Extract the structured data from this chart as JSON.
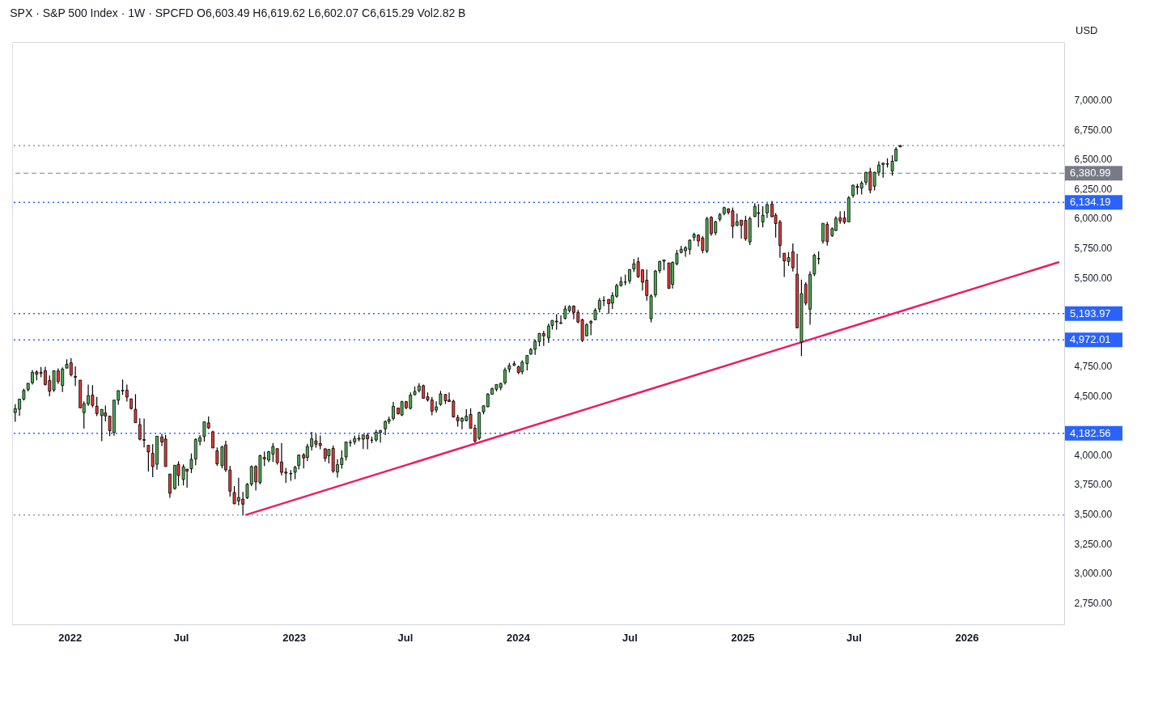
{
  "chart_data": {
    "type": "candlestick",
    "title": "SPX · S&P 500 Index · 1W · SPCFD   O6,603.49  H6,619.62  L6,602.07  C6,615.29  Vol2.82 B",
    "annotations": [
      "USD"
    ],
    "x": [
      "2021-10-04",
      "2021-10-11",
      "2021-10-18",
      "2021-10-25",
      "2021-11-01",
      "2021-11-08",
      "2021-11-15",
      "2021-11-22",
      "2021-11-29",
      "2021-12-06",
      "2021-12-13",
      "2021-12-20",
      "2021-12-27",
      "2022-01-03",
      "2022-01-10",
      "2022-01-18",
      "2022-01-24",
      "2022-01-31",
      "2022-02-07",
      "2022-02-14",
      "2022-02-22",
      "2022-02-28",
      "2022-03-07",
      "2022-03-14",
      "2022-03-21",
      "2022-03-28",
      "2022-04-04",
      "2022-04-11",
      "2022-04-18",
      "2022-04-25",
      "2022-05-02",
      "2022-05-09",
      "2022-05-16",
      "2022-05-23",
      "2022-05-31",
      "2022-06-06",
      "2022-06-13",
      "2022-06-21",
      "2022-06-27",
      "2022-07-05",
      "2022-07-11",
      "2022-07-18",
      "2022-07-25",
      "2022-08-01",
      "2022-08-08",
      "2022-08-15",
      "2022-08-22",
      "2022-08-29",
      "2022-09-06",
      "2022-09-12",
      "2022-09-19",
      "2022-09-26",
      "2022-10-03",
      "2022-10-10",
      "2022-10-17",
      "2022-10-24",
      "2022-10-31",
      "2022-11-07",
      "2022-11-14",
      "2022-11-21",
      "2022-11-28",
      "2022-12-05",
      "2022-12-12",
      "2022-12-19",
      "2022-12-27",
      "2023-01-03",
      "2023-01-09",
      "2023-01-17",
      "2023-01-23",
      "2023-01-30",
      "2023-02-06",
      "2023-02-13",
      "2023-02-21",
      "2023-02-27",
      "2023-03-06",
      "2023-03-13",
      "2023-03-20",
      "2023-03-27",
      "2023-04-03",
      "2023-04-10",
      "2023-04-17",
      "2023-04-24",
      "2023-05-01",
      "2023-05-08",
      "2023-05-15",
      "2023-05-22",
      "2023-05-30",
      "2023-06-05",
      "2023-06-12",
      "2023-06-20",
      "2023-06-26",
      "2023-07-03",
      "2023-07-10",
      "2023-07-17",
      "2023-07-24",
      "2023-07-31",
      "2023-08-07",
      "2023-08-14",
      "2023-08-21",
      "2023-08-28",
      "2023-09-05",
      "2023-09-11",
      "2023-09-18",
      "2023-09-25",
      "2023-10-02",
      "2023-10-09",
      "2023-10-16",
      "2023-10-23",
      "2023-10-30",
      "2023-11-06",
      "2023-11-13",
      "2023-11-20",
      "2023-11-27",
      "2023-12-04",
      "2023-12-11",
      "2023-12-18",
      "2023-12-26",
      "2024-01-02",
      "2024-01-08",
      "2024-01-16",
      "2024-01-22",
      "2024-01-29",
      "2024-02-05",
      "2024-02-12",
      "2024-02-20",
      "2024-02-26",
      "2024-03-04",
      "2024-03-11",
      "2024-03-18",
      "2024-03-25",
      "2024-04-01",
      "2024-04-08",
      "2024-04-15",
      "2024-04-22",
      "2024-04-29",
      "2024-05-06",
      "2024-05-13",
      "2024-05-20",
      "2024-05-28",
      "2024-06-03",
      "2024-06-10",
      "2024-06-17",
      "2024-06-24",
      "2024-07-01",
      "2024-07-08",
      "2024-07-15",
      "2024-07-22",
      "2024-07-29",
      "2024-08-05",
      "2024-08-12",
      "2024-08-19",
      "2024-08-26",
      "2024-09-03",
      "2024-09-09",
      "2024-09-16",
      "2024-09-23",
      "2024-09-30",
      "2024-10-07",
      "2024-10-14",
      "2024-10-21",
      "2024-10-28",
      "2024-11-04",
      "2024-11-11",
      "2024-11-18",
      "2024-11-25",
      "2024-12-02",
      "2024-12-09",
      "2024-12-16",
      "2024-12-23",
      "2024-12-30",
      "2025-01-06",
      "2025-01-13",
      "2025-01-21",
      "2025-01-27",
      "2025-02-03",
      "2025-02-10",
      "2025-02-18",
      "2025-02-24",
      "2025-03-03",
      "2025-03-10",
      "2025-03-17",
      "2025-03-24",
      "2025-03-31",
      "2025-04-07",
      "2025-04-14",
      "2025-04-21",
      "2025-04-28",
      "2025-05-05",
      "2025-05-12",
      "2025-05-19",
      "2025-05-27",
      "2025-06-02",
      "2025-06-09",
      "2025-06-16",
      "2025-06-23",
      "2025-06-30",
      "2025-07-07",
      "2025-07-14",
      "2025-07-21",
      "2025-07-28",
      "2025-08-04",
      "2025-08-11",
      "2025-08-18",
      "2025-08-25",
      "2025-09-02",
      "2025-09-08",
      "2025-09-15"
    ],
    "ohlc": [
      [
        4357,
        4429,
        4279,
        4391
      ],
      [
        4386,
        4475,
        4329,
        4471
      ],
      [
        4471,
        4559,
        4459,
        4545
      ],
      [
        4553,
        4608,
        4537,
        4605
      ],
      [
        4610,
        4718,
        4595,
        4697
      ],
      [
        4701,
        4714,
        4630,
        4682
      ],
      [
        4689,
        4743,
        4656,
        4698
      ],
      [
        4712,
        4744,
        4585,
        4595
      ],
      [
        4628,
        4672,
        4495,
        4538
      ],
      [
        4548,
        4713,
        4532,
        4712
      ],
      [
        4710,
        4731,
        4600,
        4620
      ],
      [
        4587,
        4740,
        4531,
        4725
      ],
      [
        4733,
        4808,
        4733,
        4766
      ],
      [
        4778,
        4818,
        4662,
        4677
      ],
      [
        4656,
        4749,
        4582,
        4663
      ],
      [
        4632,
        4632,
        4395,
        4398
      ],
      [
        4357,
        4453,
        4222,
        4432
      ],
      [
        4431,
        4595,
        4415,
        4501
      ],
      [
        4505,
        4590,
        4401,
        4419
      ],
      [
        4412,
        4490,
        4327,
        4349
      ],
      [
        4332,
        4385,
        4115,
        4385
      ],
      [
        4354,
        4416,
        4284,
        4329
      ],
      [
        4328,
        4329,
        4158,
        4204
      ],
      [
        4188,
        4465,
        4161,
        4463
      ],
      [
        4462,
        4546,
        4424,
        4543
      ],
      [
        4541,
        4637,
        4507,
        4546
      ],
      [
        4547,
        4594,
        4450,
        4488
      ],
      [
        4474,
        4475,
        4382,
        4392
      ],
      [
        4385,
        4513,
        4270,
        4272
      ],
      [
        4256,
        4308,
        4123,
        4132
      ],
      [
        4130,
        4307,
        4062,
        4123
      ],
      [
        4081,
        4081,
        3859,
        4024
      ],
      [
        4013,
        4090,
        3811,
        3901
      ],
      [
        3920,
        4158,
        3875,
        4158
      ],
      [
        4151,
        4177,
        4074,
        4109
      ],
      [
        4134,
        4169,
        3900,
        3901
      ],
      [
        3838,
        3838,
        3637,
        3675
      ],
      [
        3715,
        3912,
        3705,
        3912
      ],
      [
        3920,
        3946,
        3738,
        3825
      ],
      [
        3792,
        3919,
        3742,
        3899
      ],
      [
        3880,
        3880,
        3722,
        3863
      ],
      [
        3883,
        4012,
        3846,
        3962
      ],
      [
        3965,
        4140,
        3913,
        4130
      ],
      [
        4113,
        4167,
        4079,
        4145
      ],
      [
        4155,
        4280,
        4112,
        4280
      ],
      [
        4270,
        4325,
        4218,
        4228
      ],
      [
        4195,
        4204,
        4057,
        4058
      ],
      [
        4034,
        4062,
        3907,
        3924
      ],
      [
        3909,
        4076,
        3886,
        4067
      ],
      [
        4084,
        4119,
        3856,
        3873
      ],
      [
        3872,
        3907,
        3647,
        3693
      ],
      [
        3682,
        3736,
        3584,
        3586
      ],
      [
        3610,
        3806,
        3572,
        3639
      ],
      [
        3626,
        3686,
        3492,
        3583
      ],
      [
        3638,
        3762,
        3627,
        3752
      ],
      [
        3753,
        3910,
        3735,
        3901
      ],
      [
        3902,
        3912,
        3698,
        3771
      ],
      [
        3767,
        4001,
        3750,
        3993
      ],
      [
        3978,
        4028,
        3906,
        3965
      ],
      [
        3956,
        4034,
        3938,
        4026
      ],
      [
        4006,
        4100,
        3940,
        4071
      ],
      [
        4053,
        4053,
        3918,
        3934
      ],
      [
        3940,
        4101,
        3827,
        3852
      ],
      [
        3854,
        3890,
        3764,
        3845
      ],
      [
        3843,
        3872,
        3780,
        3839
      ],
      [
        3853,
        3907,
        3794,
        3895
      ],
      [
        3910,
        4003,
        3877,
        3999
      ],
      [
        3999,
        4015,
        3885,
        3973
      ],
      [
        3978,
        4094,
        3949,
        4071
      ],
      [
        4070,
        4195,
        4037,
        4136
      ],
      [
        4119,
        4176,
        4060,
        4090
      ],
      [
        4096,
        4163,
        4048,
        4079
      ],
      [
        4052,
        4052,
        3943,
        3970
      ],
      [
        3992,
        4048,
        3928,
        4046
      ],
      [
        4055,
        4078,
        3847,
        3862
      ],
      [
        3855,
        3963,
        3808,
        3917
      ],
      [
        3917,
        4039,
        3884,
        3971
      ],
      [
        3982,
        4110,
        3951,
        4109
      ],
      [
        4103,
        4128,
        4069,
        4105
      ],
      [
        4110,
        4164,
        4086,
        4138
      ],
      [
        4140,
        4170,
        4114,
        4133
      ],
      [
        4132,
        4170,
        4049,
        4169
      ],
      [
        4166,
        4186,
        4048,
        4136
      ],
      [
        4124,
        4154,
        4099,
        4124
      ],
      [
        4126,
        4212,
        4111,
        4191
      ],
      [
        4190,
        4212,
        4103,
        4205
      ],
      [
        4220,
        4290,
        4167,
        4282
      ],
      [
        4283,
        4322,
        4261,
        4299
      ],
      [
        4308,
        4448,
        4292,
        4410
      ],
      [
        4396,
        4400,
        4341,
        4348
      ],
      [
        4337,
        4458,
        4328,
        4450
      ],
      [
        4450,
        4456,
        4385,
        4399
      ],
      [
        4394,
        4528,
        4384,
        4505
      ],
      [
        4508,
        4578,
        4504,
        4536
      ],
      [
        4543,
        4607,
        4528,
        4582
      ],
      [
        4585,
        4594,
        4474,
        4478
      ],
      [
        4491,
        4528,
        4450,
        4464
      ],
      [
        4464,
        4490,
        4335,
        4370
      ],
      [
        4380,
        4452,
        4356,
        4406
      ],
      [
        4426,
        4541,
        4415,
        4516
      ],
      [
        4510,
        4514,
        4430,
        4457
      ],
      [
        4463,
        4527,
        4447,
        4450
      ],
      [
        4454,
        4466,
        4316,
        4320
      ],
      [
        4316,
        4338,
        4238,
        4288
      ],
      [
        4284,
        4319,
        4216,
        4309
      ],
      [
        4289,
        4385,
        4283,
        4327
      ],
      [
        4342,
        4394,
        4223,
        4224
      ],
      [
        4226,
        4256,
        4104,
        4117
      ],
      [
        4140,
        4366,
        4126,
        4358
      ],
      [
        4364,
        4418,
        4343,
        4415
      ],
      [
        4406,
        4521,
        4403,
        4514
      ],
      [
        4512,
        4568,
        4510,
        4559
      ],
      [
        4555,
        4595,
        4537,
        4595
      ],
      [
        4569,
        4609,
        4546,
        4604
      ],
      [
        4610,
        4738,
        4594,
        4719
      ],
      [
        4725,
        4778,
        4697,
        4754
      ],
      [
        4758,
        4793,
        4751,
        4770
      ],
      [
        4745,
        4755,
        4682,
        4697
      ],
      [
        4703,
        4799,
        4682,
        4784
      ],
      [
        4772,
        4842,
        4714,
        4840
      ],
      [
        4853,
        4904,
        4845,
        4891
      ],
      [
        4892,
        4975,
        4845,
        4959
      ],
      [
        4958,
        5030,
        4918,
        5027
      ],
      [
        5026,
        5049,
        4920,
        5006
      ],
      [
        4989,
        5111,
        4946,
        5089
      ],
      [
        5094,
        5138,
        5059,
        5137
      ],
      [
        5130,
        5190,
        5057,
        5124
      ],
      [
        5112,
        5179,
        5105,
        5117
      ],
      [
        5154,
        5262,
        5145,
        5234
      ],
      [
        5220,
        5265,
        5203,
        5254
      ],
      [
        5258,
        5265,
        5146,
        5204
      ],
      [
        5204,
        5225,
        5113,
        5123
      ],
      [
        5142,
        5151,
        4953,
        4967
      ],
      [
        5006,
        5114,
        5002,
        5100
      ],
      [
        5115,
        5139,
        5011,
        5128
      ],
      [
        5142,
        5240,
        5142,
        5223
      ],
      [
        5233,
        5326,
        5204,
        5304
      ],
      [
        5305,
        5342,
        5257,
        5305
      ],
      [
        5315,
        5315,
        5191,
        5278
      ],
      [
        5283,
        5376,
        5234,
        5347
      ],
      [
        5341,
        5447,
        5327,
        5432
      ],
      [
        5432,
        5505,
        5421,
        5465
      ],
      [
        5460,
        5524,
        5433,
        5460
      ],
      [
        5471,
        5570,
        5448,
        5567
      ],
      [
        5572,
        5656,
        5546,
        5615
      ],
      [
        5633,
        5669,
        5497,
        5505
      ],
      [
        5565,
        5566,
        5390,
        5459
      ],
      [
        5476,
        5567,
        5303,
        5347
      ],
      [
        5151,
        5358,
        5120,
        5344
      ],
      [
        5353,
        5563,
        5331,
        5554
      ],
      [
        5557,
        5643,
        5536,
        5634
      ],
      [
        5637,
        5651,
        5560,
        5648
      ],
      [
        5623,
        5623,
        5403,
        5408
      ],
      [
        5442,
        5636,
        5406,
        5627
      ],
      [
        5615,
        5733,
        5602,
        5703
      ],
      [
        5711,
        5767,
        5703,
        5738
      ],
      [
        5726,
        5765,
        5674,
        5751
      ],
      [
        5737,
        5822,
        5694,
        5815
      ],
      [
        5839,
        5878,
        5809,
        5864
      ],
      [
        5857,
        5866,
        5762,
        5808
      ],
      [
        5833,
        5850,
        5703,
        5729
      ],
      [
        5723,
        6013,
        5706,
        5996
      ],
      [
        6008,
        6018,
        5853,
        5870
      ],
      [
        5878,
        5979,
        5858,
        5969
      ],
      [
        5992,
        6045,
        5973,
        6032
      ],
      [
        6041,
        6099,
        6025,
        6090
      ],
      [
        6080,
        6085,
        6032,
        6051
      ],
      [
        6063,
        6091,
        5832,
        5931
      ],
      [
        5940,
        6040,
        5935,
        5971
      ],
      [
        5984,
        5985,
        5829,
        5942
      ],
      [
        5982,
        6021,
        5809,
        5827
      ],
      [
        5800,
        6014,
        5773,
        5997
      ],
      [
        6015,
        6128,
        6009,
        6101
      ],
      [
        6047,
        6120,
        5923,
        6041
      ],
      [
        5969,
        6101,
        5923,
        6026
      ],
      [
        6046,
        6128,
        6003,
        6115
      ],
      [
        6121,
        6147,
        6009,
        6013
      ],
      [
        6026,
        6044,
        5837,
        5955
      ],
      [
        5969,
        5986,
        5666,
        5770
      ],
      [
        5705,
        5705,
        5504,
        5639
      ],
      [
        5635,
        5715,
        5597,
        5667
      ],
      [
        5718,
        5787,
        5550,
        5581
      ],
      [
        5527,
        5700,
        5069,
        5074
      ],
      [
        4953,
        5481,
        4835,
        5363
      ],
      [
        5441,
        5459,
        5265,
        5283
      ],
      [
        5232,
        5551,
        5101,
        5525
      ],
      [
        5529,
        5700,
        5511,
        5687
      ],
      [
        5657,
        5720,
        5612,
        5660
      ],
      [
        5807,
        5959,
        5786,
        5958
      ],
      [
        5949,
        5969,
        5768,
        5803
      ],
      [
        5854,
        5922,
        5843,
        5912
      ],
      [
        5897,
        6017,
        5891,
        6000
      ],
      [
        6005,
        6060,
        5953,
        5977
      ],
      [
        6004,
        6060,
        5952,
        5968
      ],
      [
        5970,
        6187,
        5970,
        6173
      ],
      [
        6193,
        6285,
        6173,
        6280
      ],
      [
        6270,
        6291,
        6201,
        6260
      ],
      [
        6255,
        6316,
        6201,
        6297
      ],
      [
        6305,
        6393,
        6282,
        6389
      ],
      [
        6394,
        6427,
        6212,
        6238
      ],
      [
        6271,
        6395,
        6236,
        6389
      ],
      [
        6389,
        6481,
        6358,
        6450
      ],
      [
        6455,
        6469,
        6343,
        6467
      ],
      [
        6457,
        6508,
        6429,
        6460
      ],
      [
        6401,
        6532,
        6360,
        6482
      ],
      [
        6485,
        6601,
        6482,
        6584
      ],
      [
        6603.49,
        6619.62,
        6602.07,
        6615.29
      ]
    ],
    "series": [
      {
        "type": "line",
        "color": "#e91e63",
        "x": [
          "2022-10-14",
          "2026-06-01"
        ],
        "values": [
          3491,
          5630
        ]
      }
    ],
    "ref_lines": [
      {
        "axis": "y",
        "value": 6615.29,
        "label": null,
        "color": "#9598a1",
        "line_style": "dotted"
      },
      {
        "axis": "y",
        "value": 6380.99,
        "label": "6,380.99",
        "color": "#787b86",
        "line_style": "dashed"
      },
      {
        "axis": "y",
        "value": 6134.19,
        "label": "6,134.19",
        "color": "#2962ff",
        "line_style": "dotted"
      },
      {
        "axis": "y",
        "value": 5193.97,
        "label": "5,193.97",
        "color": "#2962ff",
        "line_style": "dotted"
      },
      {
        "axis": "y",
        "value": 4972.01,
        "label": "4,972.01",
        "color": "#2962ff",
        "line_style": "dotted"
      },
      {
        "axis": "y",
        "value": 4182.56,
        "label": "4,182.56",
        "color": "#2962ff",
        "line_style": "dotted"
      },
      {
        "axis": "y",
        "value": 3491,
        "label": null,
        "color": "#9598a1",
        "line_style": "dotted"
      }
    ],
    "xlim": [
      "2021-09-29",
      "2026-06-09"
    ],
    "xticks": [
      {
        "value": "2022-01-01",
        "label": "2022"
      },
      {
        "value": "2022-07-01",
        "label": "Jul"
      },
      {
        "value": "2023-01-01",
        "label": "2023"
      },
      {
        "value": "2023-07-01",
        "label": "Jul"
      },
      {
        "value": "2024-01-01",
        "label": "2024"
      },
      {
        "value": "2024-07-01",
        "label": "Jul"
      },
      {
        "value": "2025-01-01",
        "label": "2025"
      },
      {
        "value": "2025-07-01",
        "label": "Jul"
      },
      {
        "value": "2026-01-01",
        "label": "2026"
      }
    ],
    "ylim": [
      2567,
      7490
    ],
    "yticks": [
      {
        "value": 2750,
        "label": "2,750.00"
      },
      {
        "value": 3000,
        "label": "3,000.00"
      },
      {
        "value": 3250,
        "label": "3,250.00"
      },
      {
        "value": 3500,
        "label": "3,500.00"
      },
      {
        "value": 3750,
        "label": "3,750.00"
      },
      {
        "value": 4000,
        "label": "4,000.00"
      },
      {
        "value": 4500,
        "label": "4,500.00"
      },
      {
        "value": 4750,
        "label": "4,750.00"
      },
      {
        "value": 5500,
        "label": "5,500.00"
      },
      {
        "value": 5750,
        "label": "5,750.00"
      },
      {
        "value": 6000,
        "label": "6,000.00"
      },
      {
        "value": 6250,
        "label": "6,250.00"
      },
      {
        "value": 6500,
        "label": "6,500.00"
      },
      {
        "value": 6750,
        "label": "6,750.00"
      },
      {
        "value": 7000,
        "label": "7,000.00"
      }
    ],
    "grid": false
  }
}
